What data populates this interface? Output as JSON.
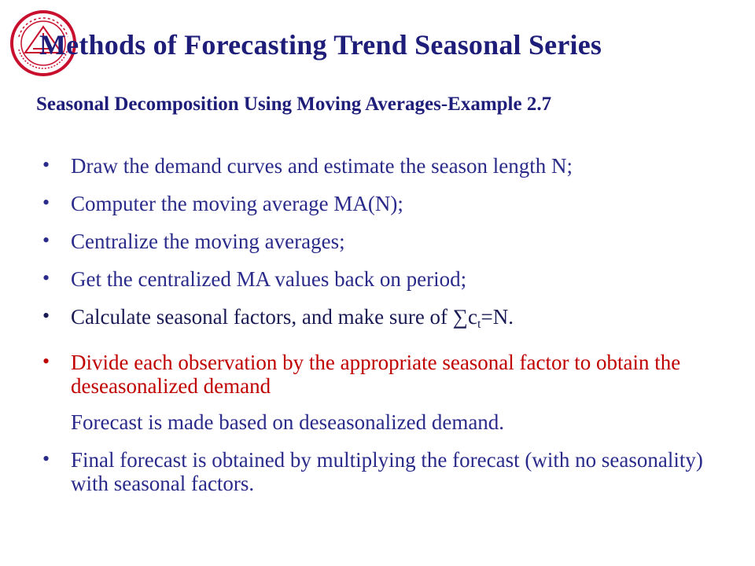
{
  "title": "Methods of Forecasting Trend Seasonal Series",
  "subtitle": "Seasonal Decomposition Using Moving Averages-Example 2.7",
  "logo": {
    "icon": "university-seal-icon",
    "color": "#c8102e"
  },
  "items": [
    {
      "bullet": "•",
      "text": "Draw the demand curves and estimate the season length N;"
    },
    {
      "bullet": "•",
      "text": "Computer the moving average MA(N);"
    },
    {
      "bullet": "•",
      "text": "Centralize the moving averages;"
    },
    {
      "bullet": "•",
      "text": "Get the centralized MA values back on period;"
    },
    {
      "bullet": "•",
      "text_before": "Calculate seasonal factors, and make sure of ∑c",
      "subscript": "t",
      "text_after": "=N."
    },
    {
      "bullet": "•",
      "text": "Divide each observation by the appropriate seasonal factor to obtain the deseasonalized demand"
    },
    {
      "text": "Forecast is made based on deseasonalized demand."
    },
    {
      "bullet": "•",
      "text": "Final forecast is  obtained  by multiplying the forecast (with no seasonality) with seasonal factors."
    }
  ],
  "colors": {
    "heading": "#1e1e7a",
    "body": "#2a2a8a",
    "highlight": "#c00000"
  }
}
